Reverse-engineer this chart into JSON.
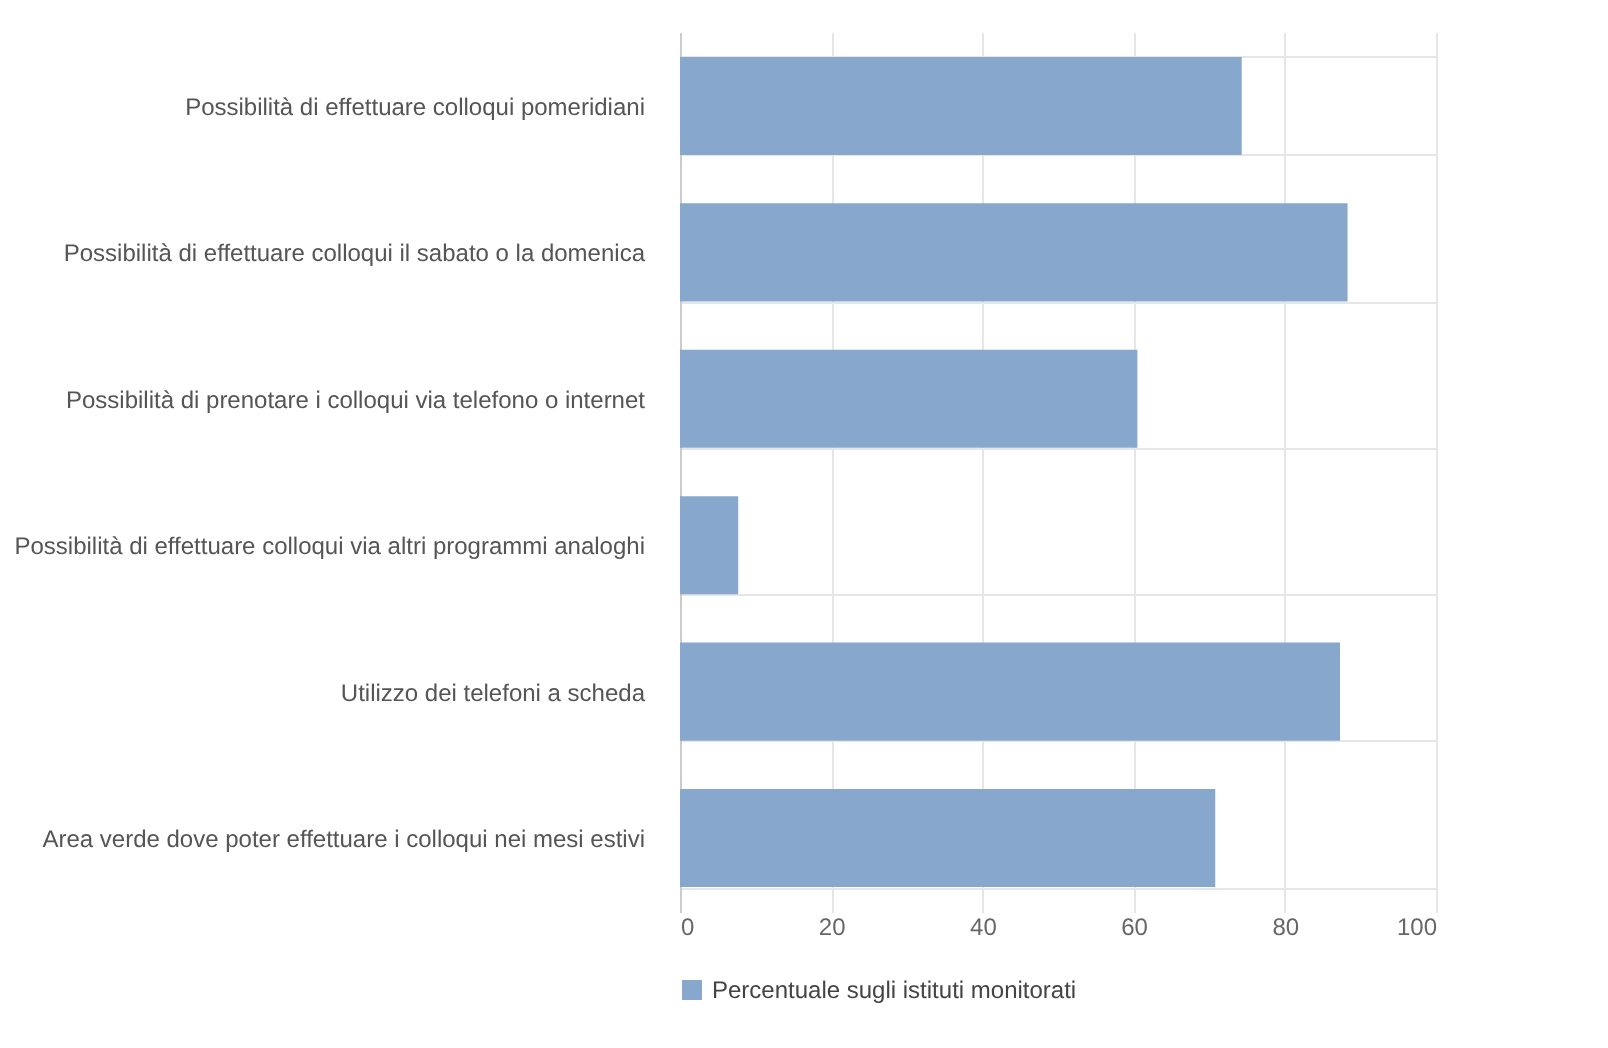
{
  "chart_data": {
    "type": "bar",
    "orientation": "horizontal",
    "categories": [
      "Possibilità di effettuare colloqui pomeridiani",
      "Possibilità di effettuare colloqui il sabato o la domenica",
      "Possibilità di prenotare i colloqui via telefono o internet",
      "Possibilità di effettuare colloqui via altri programmi analoghi",
      "Utilizzo dei telefoni a scheda",
      "Area verde dove poter effettuare i colloqui nei mesi estivi"
    ],
    "series": [
      {
        "name": "Percentuale sugli istituti monitorati",
        "color": "#87a8cc",
        "values": [
          74.3,
          88.3,
          60.5,
          7.7,
          87.3,
          70.8
        ]
      }
    ],
    "xlim": [
      0,
      100
    ],
    "xticks": [
      0,
      20,
      40,
      60,
      80,
      100
    ],
    "grid": true,
    "legend": "bottom"
  }
}
